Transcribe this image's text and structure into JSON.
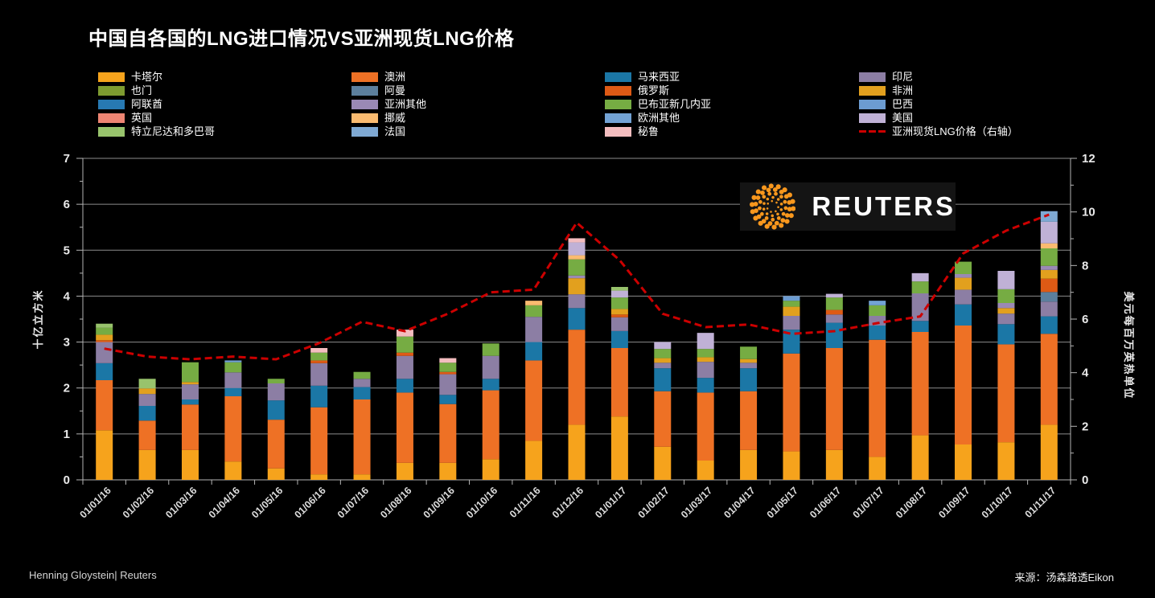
{
  "title": "中国自各国的LNG进口情况VS亚洲现货LNG价格",
  "logo": {
    "text": "REUTERS"
  },
  "footer": {
    "left": "Henning Gloystein| Reuters",
    "right": "来源：汤森路透Eikon"
  },
  "colors": {
    "background": "#000000",
    "grid": "#8c8c8c",
    "axis": "#b5b5b5",
    "price_line": "#CC0000",
    "logo_orange": "#F8971D"
  },
  "chart_data": {
    "type": "bar",
    "subtype": "stacked-bar-with-line-overlay",
    "title": "中国自各国的LNG进口情况VS亚洲现货LNG价格",
    "categories": [
      "01/01/16",
      "01/02/16",
      "01/03/16",
      "01/04/16",
      "01/05/16",
      "01/06/16",
      "01/07/16",
      "01/08/16",
      "01/09/16",
      "01/10/16",
      "01/11/16",
      "01/12/16",
      "01/01/17",
      "01/02/17",
      "01/03/17",
      "01/04/17",
      "01/05/17",
      "01/06/17",
      "01/07/17",
      "01/08/17",
      "01/09/17",
      "01/10/17",
      "01/11/17"
    ],
    "left_axis": {
      "label": "十亿立方米",
      "min": 0,
      "max": 7,
      "ticks": [
        0,
        1,
        2,
        3,
        4,
        5,
        6,
        7
      ]
    },
    "right_axis": {
      "label": "美元每百万英热单位",
      "min": 0,
      "max": 12,
      "ticks": [
        0,
        2,
        4,
        6,
        8,
        10,
        12
      ]
    },
    "series": [
      {
        "name": "卡塔尔",
        "color": "#F6A31C",
        "values": [
          1.08,
          0.65,
          0.65,
          0.4,
          0.25,
          0.12,
          0.12,
          0.37,
          0.37,
          0.45,
          0.85,
          1.2,
          1.38,
          0.72,
          0.42,
          0.65,
          0.62,
          0.65,
          0.5,
          0.97,
          0.77,
          0.82,
          1.2
        ]
      },
      {
        "name": "澳洲",
        "color": "#EE7125",
        "values": [
          1.09,
          0.64,
          0.99,
          1.42,
          1.06,
          1.46,
          1.63,
          1.53,
          1.28,
          1.5,
          1.75,
          2.07,
          1.49,
          1.21,
          1.48,
          1.28,
          2.13,
          2.22,
          2.55,
          2.25,
          2.59,
          2.13,
          1.98
        ]
      },
      {
        "name": "马来西亚",
        "color": "#1B77A6",
        "values": [
          0.37,
          0.32,
          0.11,
          0.18,
          0.42,
          0.47,
          0.27,
          0.3,
          0.2,
          0.25,
          0.4,
          0.47,
          0.37,
          0.5,
          0.32,
          0.5,
          0.52,
          0.55,
          0.31,
          0.24,
          0.46,
          0.44,
          0.38
        ]
      },
      {
        "name": "印尼",
        "color": "#8C7EA4",
        "values": [
          0.46,
          0.26,
          0.33,
          0.34,
          0.37,
          0.49,
          0.18,
          0.5,
          0.45,
          0.5,
          0.55,
          0.3,
          0.3,
          0.12,
          0.35,
          0.12,
          0.3,
          0.18,
          0.21,
          0.6,
          0.32,
          0.23,
          0.32
        ]
      },
      {
        "name": "也门",
        "color": "#7E9B30",
        "values": [
          0,
          0,
          0,
          0,
          0,
          0,
          0,
          0,
          0,
          0,
          0,
          0,
          0,
          0,
          0,
          0,
          0,
          0,
          0,
          0,
          0,
          0,
          0
        ]
      },
      {
        "name": "阿曼",
        "color": "#5C7F9D",
        "values": [
          0,
          0,
          0,
          0,
          0,
          0,
          0,
          0,
          0,
          0,
          0,
          0,
          0,
          0,
          0,
          0,
          0,
          0,
          0,
          0,
          0,
          0,
          0.21
        ]
      },
      {
        "name": "俄罗斯",
        "color": "#DE5A15",
        "values": [
          0.04,
          0,
          0,
          0,
          0,
          0.06,
          0,
          0.07,
          0.05,
          0,
          0,
          0,
          0.06,
          0,
          0,
          0,
          0,
          0.1,
          0,
          0,
          0,
          0,
          0.29
        ]
      },
      {
        "name": "非洲",
        "color": "#E2A01E",
        "values": [
          0.12,
          0.12,
          0.05,
          0,
          0,
          0,
          0,
          0,
          0,
          0,
          0,
          0.35,
          0.12,
          0.1,
          0.1,
          0.08,
          0.2,
          0,
          0,
          0,
          0.26,
          0.12,
          0.19
        ]
      },
      {
        "name": "阿联酋",
        "color": "#2779B2",
        "values": [
          0,
          0,
          0,
          0,
          0,
          0,
          0,
          0,
          0,
          0,
          0,
          0,
          0,
          0,
          0,
          0,
          0,
          0,
          0,
          0,
          0,
          0,
          0
        ]
      },
      {
        "name": "亚洲其他",
        "color": "#9A89B5",
        "values": [
          0,
          0,
          0,
          0,
          0,
          0,
          0,
          0,
          0,
          0,
          0,
          0.06,
          0,
          0,
          0,
          0,
          0,
          0,
          0,
          0,
          0.08,
          0.11,
          0.09
        ]
      },
      {
        "name": "巴布亚新几内亚",
        "color": "#76AC43",
        "values": [
          0.15,
          0,
          0.43,
          0.22,
          0.1,
          0.17,
          0.15,
          0.35,
          0.2,
          0.27,
          0.25,
          0.35,
          0.25,
          0.2,
          0.18,
          0.27,
          0.13,
          0.27,
          0.23,
          0.26,
          0.27,
          0.3,
          0.38
        ]
      },
      {
        "name": "巴西",
        "color": "#6C9CD1",
        "values": [
          0,
          0,
          0,
          0,
          0,
          0,
          0,
          0,
          0,
          0,
          0,
          0,
          0,
          0,
          0,
          0,
          0.1,
          0,
          0,
          0,
          0,
          0,
          0
        ]
      },
      {
        "name": "英国",
        "color": "#EE8573",
        "values": [
          0,
          0,
          0,
          0,
          0,
          0,
          0,
          0,
          0,
          0,
          0,
          0,
          0,
          0,
          0,
          0,
          0,
          0,
          0,
          0,
          0,
          0,
          0
        ]
      },
      {
        "name": "挪威",
        "color": "#FABB70",
        "values": [
          0,
          0,
          0,
          0,
          0,
          0,
          0,
          0,
          0,
          0,
          0.1,
          0.09,
          0,
          0,
          0,
          0,
          0,
          0,
          0,
          0,
          0,
          0,
          0.11
        ]
      },
      {
        "name": "欧洲其他",
        "color": "#73A3D5",
        "values": [
          0,
          0,
          0,
          0.04,
          0,
          0,
          0,
          0,
          0,
          0,
          0,
          0,
          0,
          0,
          0,
          0,
          0,
          0,
          0.1,
          0,
          0,
          0,
          0
        ]
      },
      {
        "name": "美国",
        "color": "#C0B1D6",
        "values": [
          0,
          0,
          0,
          0,
          0,
          0,
          0,
          0,
          0,
          0,
          0,
          0.28,
          0.15,
          0.15,
          0.35,
          0,
          0,
          0.08,
          0,
          0.18,
          0,
          0.4,
          0.47
        ]
      },
      {
        "name": "特立尼达和多巴哥",
        "color": "#98C36C",
        "values": [
          0.09,
          0.21,
          0,
          0,
          0,
          0,
          0,
          0,
          0,
          0,
          0,
          0,
          0.08,
          0,
          0,
          0,
          0,
          0,
          0,
          0,
          0,
          0,
          0
        ]
      },
      {
        "name": "法国",
        "color": "#7FA9D3",
        "values": [
          0,
          0,
          0,
          0,
          0,
          0,
          0,
          0,
          0,
          0,
          0,
          0,
          0,
          0,
          0,
          0,
          0,
          0,
          0,
          0,
          0,
          0,
          0.23
        ]
      },
      {
        "name": "秘鲁",
        "color": "#F3BDBF",
        "values": [
          0,
          0,
          0,
          0,
          0,
          0.1,
          0,
          0.15,
          0.1,
          0,
          0,
          0.09,
          0,
          0,
          0,
          0,
          0,
          0,
          0,
          0,
          0,
          0,
          0
        ]
      }
    ],
    "line_series": {
      "name": "亚洲现货LNG价格（右轴）",
      "axis": "right",
      "color": "#CC0000",
      "dashed": true,
      "values": [
        4.9,
        4.6,
        4.5,
        4.6,
        4.5,
        5.1,
        5.9,
        5.55,
        6.2,
        7.0,
        7.1,
        9.6,
        8.2,
        6.2,
        5.7,
        5.8,
        5.45,
        5.55,
        5.85,
        6.1,
        8.45,
        9.3,
        9.9
      ]
    },
    "legend": {
      "columns": [
        [
          "卡塔尔",
          "也门",
          "阿联酋",
          "英国",
          "特立尼达和多巴哥"
        ],
        [
          "澳洲",
          "阿曼",
          "亚洲其他",
          "挪威",
          "法国"
        ],
        [
          "马来西亚",
          "俄罗斯",
          "巴布亚新几内亚",
          "欧洲其他",
          "秘鲁"
        ],
        [
          "印尼",
          "非洲",
          "巴西",
          "美国",
          "亚洲现货LNG价格（右轴）"
        ]
      ]
    }
  }
}
